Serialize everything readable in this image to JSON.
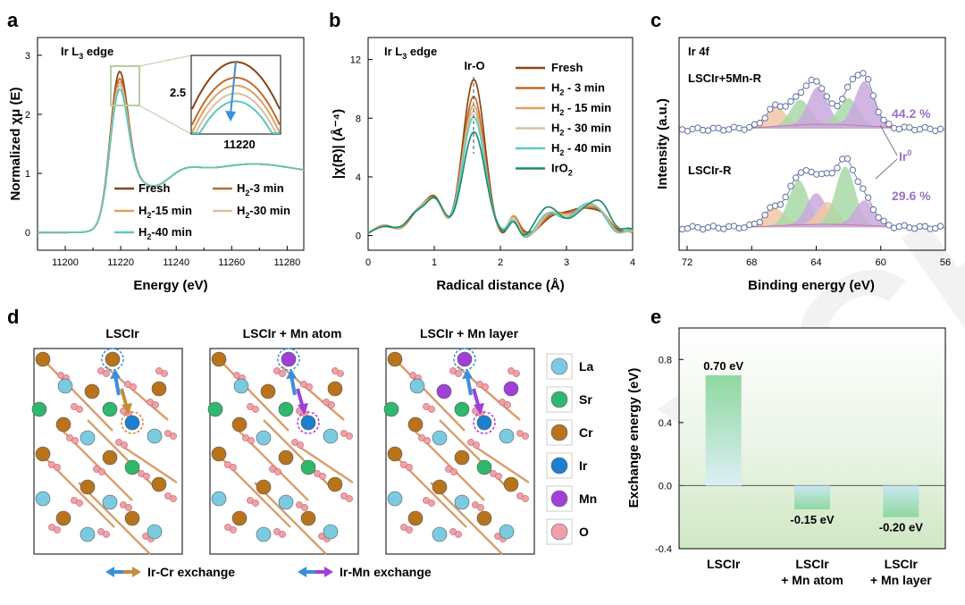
{
  "panel_labels": {
    "a": "a",
    "b": "b",
    "c": "c",
    "d": "d",
    "e": "e"
  },
  "colors": {
    "fresh": "#8B4513",
    "h3": "#C06A2A",
    "h15": "#E0A060",
    "h30": "#D8C0A8",
    "h40": "#5CC8C0",
    "iro2": "#1E8C6E",
    "la": "#7CCAE0",
    "sr": "#2EB86E",
    "cr": "#B8731B",
    "ir": "#1E7ED0",
    "mn": "#A040D8",
    "o": "#F0A0A8",
    "peak_orange": "#F3C7A6",
    "peak_purple": "#C9A8DE",
    "peak_green": "#A8D8A8",
    "baseline": "#D070B0",
    "fit": "#8080A0"
  },
  "chart_data": [
    {
      "id": "a",
      "type": "line",
      "annotation": "Ir L3 edge",
      "xlabel": "Energy (eV)",
      "ylabel": "Normalized χμ (E)",
      "xlim": [
        11190,
        11286
      ],
      "ylim": [
        -0.3,
        3.3
      ],
      "xticks": [
        "11200",
        "11220",
        "11240",
        "11260",
        "11280"
      ],
      "yticks": [
        "0",
        "1",
        "2",
        "3"
      ],
      "inset": {
        "xtick": "11220",
        "ytick": "2.5"
      },
      "series": [
        {
          "name": "Fresh",
          "peak": 2.8,
          "color": "#8B4513"
        },
        {
          "name": "H2-3 min",
          "peak": 2.68,
          "color": "#C06A2A"
        },
        {
          "name": "H2-15 min",
          "peak": 2.62,
          "color": "#E0A060"
        },
        {
          "name": "H2-30 min",
          "peak": 2.56,
          "color": "#D8C0A8"
        },
        {
          "name": "H2-40 min",
          "peak": 2.5,
          "color": "#5CC8C0"
        }
      ],
      "legend": [
        {
          "main": "Fresh",
          "sub": "",
          "tail": ""
        },
        {
          "main": "H",
          "sub": "2",
          "tail": "-3 min"
        },
        {
          "main": "H",
          "sub": "2",
          "tail": "-15 min"
        },
        {
          "main": "H",
          "sub": "2",
          "tail": "-30 min"
        },
        {
          "main": "H",
          "sub": "2",
          "tail": "-40 min"
        }
      ]
    },
    {
      "id": "b",
      "type": "line",
      "annotation": "Ir L3 edge",
      "peak_label": "Ir-O",
      "xlabel": "Radical distance (Å)",
      "ylabel": "|χ(R)| (Å⁻⁴)",
      "xlim": [
        0,
        4
      ],
      "ylim": [
        -1,
        13.5
      ],
      "xticks": [
        "0",
        "1",
        "2",
        "3",
        "4"
      ],
      "yticks": [
        "0",
        "4",
        "8",
        "12"
      ],
      "series": [
        {
          "name": "Fresh",
          "peak": 10.7,
          "color": "#8B4513"
        },
        {
          "name": "H2 - 3 min",
          "peak": 9.6,
          "color": "#C06A2A"
        },
        {
          "name": "H2 - 15 min",
          "peak": 9.1,
          "color": "#E0A060"
        },
        {
          "name": "H2 - 30 min",
          "peak": 8.8,
          "color": "#D8C0A8"
        },
        {
          "name": "H2 - 40 min",
          "peak": 8.5,
          "color": "#5CC8C0"
        },
        {
          "name": "IrO2",
          "peak": 7.5,
          "color": "#1E8C6E"
        }
      ],
      "legend": [
        {
          "main": "Fresh",
          "sub": "",
          "tail": ""
        },
        {
          "main": "H",
          "sub": "2",
          "tail": " - 3 min"
        },
        {
          "main": "H",
          "sub": "2",
          "tail": " - 15 min"
        },
        {
          "main": "H",
          "sub": "2",
          "tail": " - 30 min"
        },
        {
          "main": "H",
          "sub": "2",
          "tail": " - 40 min"
        },
        {
          "main": "IrO",
          "sub": "2",
          "tail": ""
        }
      ]
    },
    {
      "id": "c",
      "type": "line",
      "annotation": "Ir 4f",
      "xlabel": "Binding energy (eV)",
      "ylabel": "Intensity (a.u.)",
      "xlim": [
        72.5,
        56
      ],
      "xticks": [
        "72",
        "68",
        "64",
        "60",
        "56"
      ],
      "samples": [
        {
          "name": "LSCIr+5Mn-R",
          "ir0_percent": "44.2 %"
        },
        {
          "name": "LSCIr-R",
          "ir0_percent": "29.6 %"
        }
      ],
      "ir0_label": "Ir",
      "ir0_sup": "0"
    },
    {
      "id": "e",
      "type": "bar",
      "xlabel": "",
      "ylabel": "Exchange energy (eV)",
      "ylim": [
        -0.4,
        1.0
      ],
      "yticks": [
        "-0.4",
        "0.0",
        "0.4",
        "0.8"
      ],
      "categories": [
        [
          "LSCIr",
          ""
        ],
        [
          "LSCIr",
          "+ Mn atom"
        ],
        [
          "LSCIr",
          "+ Mn layer"
        ]
      ],
      "values": [
        0.7,
        -0.15,
        -0.2
      ],
      "value_labels": [
        "0.70 eV",
        "-0.15 eV",
        "-0.20 eV"
      ]
    }
  ],
  "panel_d": {
    "titles": [
      "LSCIr",
      "LSCIr + Mn atom",
      "LSCIr + Mn layer"
    ],
    "legend": [
      {
        "label": "La",
        "key": "la"
      },
      {
        "label": "Sr",
        "key": "sr"
      },
      {
        "label": "Cr",
        "key": "cr"
      },
      {
        "label": "Ir",
        "key": "ir"
      },
      {
        "label": "Mn",
        "key": "mn"
      },
      {
        "label": "O",
        "key": "o"
      }
    ],
    "exchange": [
      "Ir-Cr exchange",
      "Ir-Mn exchange"
    ]
  },
  "watermark": "VCH"
}
